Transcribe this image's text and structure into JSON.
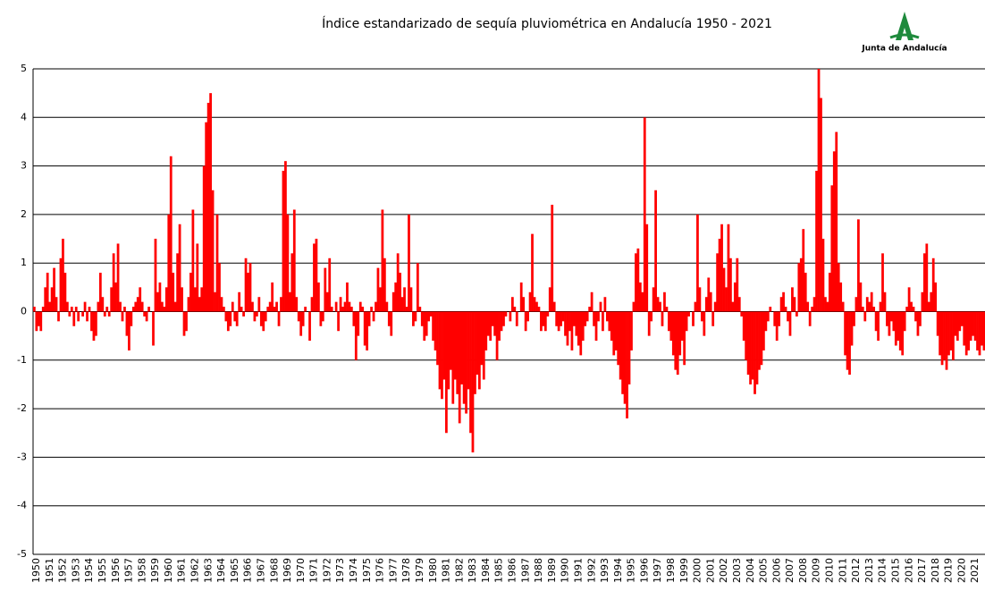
{
  "chart_data": {
    "type": "bar",
    "title": "Índice estandarizado de sequía pluviométrica en Andalucía 1950 - 2021",
    "logo_text": "Junta de Andalucía",
    "color": "#ff0000",
    "grid": true,
    "ylim": [
      -5,
      5
    ],
    "yticks": [
      -5,
      -4,
      -3,
      -2,
      -1,
      0,
      1,
      2,
      3,
      4,
      5
    ],
    "categories": [
      "1950",
      null,
      null,
      null,
      null,
      null,
      "1951",
      null,
      null,
      null,
      null,
      null,
      "1952",
      null,
      null,
      null,
      null,
      null,
      "1953",
      null,
      null,
      null,
      null,
      null,
      "1954",
      null,
      null,
      null,
      null,
      null,
      "1955",
      null,
      null,
      null,
      null,
      null,
      "1956",
      null,
      null,
      null,
      null,
      null,
      "1957",
      null,
      null,
      null,
      null,
      null,
      "1958",
      null,
      null,
      null,
      null,
      null,
      "1959",
      null,
      null,
      null,
      null,
      null,
      "1960",
      null,
      null,
      null,
      null,
      null,
      "1961",
      null,
      null,
      null,
      null,
      null,
      "1962",
      null,
      null,
      null,
      null,
      null,
      "1963",
      null,
      null,
      null,
      null,
      null,
      "1964",
      null,
      null,
      null,
      null,
      null,
      "1965",
      null,
      null,
      null,
      null,
      null,
      "1966",
      null,
      null,
      null,
      null,
      null,
      "1967",
      null,
      null,
      null,
      null,
      null,
      "1968",
      null,
      null,
      null,
      null,
      null,
      "1969",
      null,
      null,
      null,
      null,
      null,
      "1970",
      null,
      null,
      null,
      null,
      null,
      "1971",
      null,
      null,
      null,
      null,
      null,
      "1972",
      null,
      null,
      null,
      null,
      null,
      "1973",
      null,
      null,
      null,
      null,
      null,
      "1974",
      null,
      null,
      null,
      null,
      null,
      "1975",
      null,
      null,
      null,
      null,
      null,
      "1976",
      null,
      null,
      null,
      null,
      null,
      "1977",
      null,
      null,
      null,
      null,
      null,
      "1978",
      null,
      null,
      null,
      null,
      null,
      "1979",
      null,
      null,
      null,
      null,
      null,
      "1980",
      null,
      null,
      null,
      null,
      null,
      "1981",
      null,
      null,
      null,
      null,
      null,
      "1982",
      null,
      null,
      null,
      null,
      null,
      "1983",
      null,
      null,
      null,
      null,
      null,
      "1984",
      null,
      null,
      null,
      null,
      null,
      "1985",
      null,
      null,
      null,
      null,
      null,
      "1986",
      null,
      null,
      null,
      null,
      null,
      "1987",
      null,
      null,
      null,
      null,
      null,
      "1988",
      null,
      null,
      null,
      null,
      null,
      "1989",
      null,
      null,
      null,
      null,
      null,
      "1990",
      null,
      null,
      null,
      null,
      null,
      "1991",
      null,
      null,
      null,
      null,
      null,
      "1992",
      null,
      null,
      null,
      null,
      null,
      "1993",
      null,
      null,
      null,
      null,
      null,
      "1994",
      null,
      null,
      null,
      null,
      null,
      "1995",
      null,
      null,
      null,
      null,
      null,
      "1996",
      null,
      null,
      null,
      null,
      null,
      "1997",
      null,
      null,
      null,
      null,
      null,
      "1998",
      null,
      null,
      null,
      null,
      null,
      "1999",
      null,
      null,
      null,
      null,
      null,
      "2000",
      null,
      null,
      null,
      null,
      null,
      "2001",
      null,
      null,
      null,
      null,
      null,
      "2002",
      null,
      null,
      null,
      null,
      null,
      "2003",
      null,
      null,
      null,
      null,
      null,
      "2004",
      null,
      null,
      null,
      null,
      null,
      "2005",
      null,
      null,
      null,
      null,
      null,
      "2006",
      null,
      null,
      null,
      null,
      null,
      "2007",
      null,
      null,
      null,
      null,
      null,
      "2008",
      null,
      null,
      null,
      null,
      null,
      "2009",
      null,
      null,
      null,
      null,
      null,
      "2010",
      null,
      null,
      null,
      null,
      null,
      "2011",
      null,
      null,
      null,
      null,
      null,
      "2012",
      null,
      null,
      null,
      null,
      null,
      "2013",
      null,
      null,
      null,
      null,
      null,
      "2014",
      null,
      null,
      null,
      null,
      null,
      "2015",
      null,
      null,
      null,
      null,
      null,
      "2016",
      null,
      null,
      null,
      null,
      null,
      "2017",
      null,
      null,
      null,
      null,
      null,
      "2018",
      null,
      null,
      null,
      null,
      null,
      "2019",
      null,
      null,
      null,
      null,
      null,
      "2020",
      null,
      null,
      null,
      null,
      null,
      "2021",
      null,
      null,
      null,
      null,
      null
    ],
    "values": [
      0.1,
      -0.4,
      -0.3,
      -0.4,
      0.1,
      0.5,
      0.8,
      0.2,
      0.5,
      0.9,
      0.3,
      -0.2,
      1.1,
      1.5,
      0.8,
      0.2,
      -0.1,
      0.1,
      -0.3,
      0.1,
      -0.2,
      0.0,
      -0.1,
      0.2,
      -0.2,
      0.1,
      -0.4,
      -0.6,
      -0.5,
      0.2,
      0.8,
      0.3,
      -0.1,
      0.1,
      -0.1,
      0.5,
      1.2,
      0.6,
      1.4,
      0.2,
      -0.2,
      0.1,
      -0.5,
      -0.8,
      -0.3,
      0.1,
      0.2,
      0.3,
      0.5,
      0.2,
      -0.1,
      -0.2,
      0.1,
      0.0,
      -0.7,
      1.5,
      0.4,
      0.6,
      0.2,
      0.1,
      0.5,
      2.0,
      3.2,
      0.8,
      0.2,
      1.2,
      1.8,
      0.5,
      -0.5,
      -0.4,
      0.3,
      0.8,
      2.1,
      0.5,
      1.4,
      0.3,
      0.5,
      3.0,
      3.9,
      4.3,
      4.5,
      2.5,
      0.4,
      2.0,
      1.0,
      0.3,
      0.1,
      -0.2,
      -0.4,
      -0.3,
      0.2,
      -0.2,
      -0.3,
      0.4,
      0.1,
      -0.1,
      1.1,
      0.8,
      1.0,
      0.2,
      -0.2,
      -0.1,
      0.3,
      -0.3,
      -0.4,
      -0.2,
      0.1,
      0.2,
      0.6,
      0.1,
      0.2,
      -0.3,
      0.3,
      2.9,
      3.1,
      2.0,
      0.4,
      1.2,
      2.1,
      0.3,
      -0.2,
      -0.5,
      -0.3,
      0.1,
      0.0,
      -0.6,
      0.3,
      1.4,
      1.5,
      0.6,
      -0.3,
      -0.2,
      0.9,
      0.4,
      1.1,
      0.1,
      0.0,
      0.2,
      -0.4,
      0.3,
      0.1,
      0.2,
      0.6,
      0.2,
      0.1,
      -0.3,
      -1.0,
      -0.5,
      0.2,
      0.1,
      -0.7,
      -0.8,
      -0.3,
      0.1,
      -0.2,
      0.2,
      0.9,
      0.5,
      2.1,
      1.1,
      0.2,
      -0.3,
      -0.5,
      0.4,
      0.6,
      1.2,
      0.8,
      0.3,
      0.5,
      0.1,
      2.0,
      0.5,
      -0.3,
      -0.2,
      1.0,
      0.1,
      -0.3,
      -0.6,
      -0.5,
      -0.2,
      -0.1,
      -0.6,
      -0.8,
      -1.1,
      -1.6,
      -1.8,
      -1.4,
      -2.5,
      -1.6,
      -1.2,
      -1.9,
      -1.4,
      -1.7,
      -2.3,
      -1.5,
      -1.9,
      -2.1,
      -1.6,
      -2.5,
      -2.9,
      -1.7,
      -1.3,
      -1.6,
      -1.1,
      -1.4,
      -0.8,
      -0.5,
      -0.6,
      -0.3,
      -0.5,
      -1.0,
      -0.6,
      -0.4,
      -0.3,
      -0.1,
      0.0,
      -0.2,
      0.3,
      0.1,
      -0.3,
      0.0,
      0.6,
      0.3,
      -0.4,
      -0.2,
      0.4,
      1.6,
      0.3,
      0.2,
      0.1,
      -0.4,
      -0.3,
      -0.4,
      -0.1,
      0.5,
      2.2,
      0.2,
      -0.3,
      -0.4,
      -0.3,
      -0.2,
      -0.5,
      -0.7,
      -0.4,
      -0.8,
      -0.3,
      -0.5,
      -0.7,
      -0.9,
      -0.6,
      -0.3,
      -0.2,
      0.1,
      0.4,
      -0.3,
      -0.6,
      -0.2,
      0.2,
      -0.4,
      0.3,
      -0.2,
      -0.4,
      -0.6,
      -0.9,
      -0.8,
      -1.1,
      -1.4,
      -1.7,
      -1.9,
      -2.2,
      -1.5,
      -0.8,
      0.2,
      1.2,
      1.3,
      0.6,
      0.4,
      4.0,
      1.8,
      -0.5,
      -0.2,
      0.5,
      2.5,
      0.3,
      0.2,
      -0.3,
      0.4,
      0.1,
      -0.4,
      -0.6,
      -0.9,
      -1.2,
      -1.3,
      -0.9,
      -0.6,
      -1.1,
      -0.4,
      -0.1,
      0.0,
      -0.3,
      0.2,
      2.0,
      0.5,
      -0.2,
      -0.5,
      0.3,
      0.7,
      0.4,
      -0.3,
      0.2,
      1.2,
      1.5,
      1.8,
      0.9,
      0.5,
      1.8,
      1.1,
      0.2,
      0.6,
      1.1,
      0.3,
      -0.1,
      -0.6,
      -1.0,
      -1.3,
      -1.5,
      -1.4,
      -1.7,
      -1.5,
      -1.2,
      -1.1,
      -0.8,
      -0.4,
      -0.2,
      0.1,
      0.0,
      -0.3,
      -0.6,
      -0.3,
      0.3,
      0.4,
      0.1,
      -0.2,
      -0.5,
      0.5,
      0.3,
      -0.1,
      1.0,
      1.1,
      1.7,
      0.8,
      0.2,
      -0.3,
      0.1,
      0.3,
      2.9,
      5.0,
      4.4,
      1.5,
      0.3,
      0.2,
      0.8,
      2.6,
      3.3,
      3.7,
      1.0,
      0.6,
      0.2,
      -0.9,
      -1.2,
      -1.3,
      -0.7,
      -0.3,
      0.3,
      1.9,
      0.6,
      0.1,
      -0.2,
      0.3,
      0.2,
      0.4,
      0.1,
      -0.4,
      -0.6,
      0.2,
      1.2,
      0.4,
      -0.3,
      -0.5,
      -0.2,
      -0.4,
      -0.7,
      -0.6,
      -0.8,
      -0.9,
      -0.4,
      0.1,
      0.5,
      0.2,
      0.1,
      -0.2,
      -0.5,
      -0.3,
      0.4,
      1.2,
      1.4,
      0.2,
      0.4,
      1.1,
      0.6,
      -0.5,
      -0.9,
      -1.1,
      -1.0,
      -1.2,
      -0.9,
      -0.8,
      -1.0,
      -0.5,
      -0.6,
      -0.4,
      -0.3,
      -0.7,
      -0.9,
      -0.8,
      -0.6,
      -0.5,
      -0.6,
      -0.8,
      -0.9,
      -0.7,
      -0.8
    ]
  }
}
